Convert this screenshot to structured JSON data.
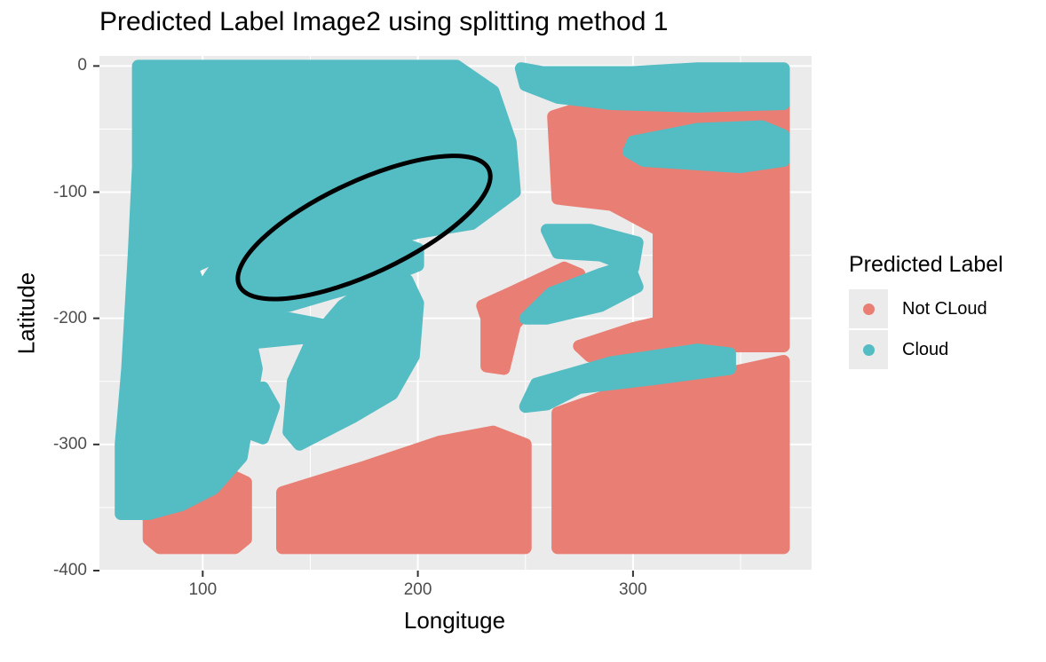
{
  "chart_data": {
    "type": "scatter",
    "title": "Predicted Label Image2 using splitting method 1",
    "xlabel": "Longituge",
    "ylabel": "Latitude",
    "xlim": [
      52,
      383
    ],
    "ylim": [
      -400,
      8
    ],
    "x_ticks": [
      100,
      200,
      300
    ],
    "y_ticks": [
      0,
      -100,
      -200,
      -300,
      -400
    ],
    "x_tick_labels": [
      "100",
      "200",
      "300"
    ],
    "y_tick_labels": [
      "0",
      "-100",
      "-200",
      "-300",
      "-400"
    ],
    "grid": true,
    "legend": {
      "title": "Predicted Label",
      "position": "right",
      "entries": [
        {
          "label": "Not CLoud",
          "color": "#E97F74"
        },
        {
          "label": "Cloud",
          "color": "#54BCC3"
        }
      ]
    },
    "series": [
      {
        "name": "Not CLoud",
        "color": "#E97F74",
        "regions": [
          [
            [
              75,
              -330
            ],
            [
              88,
              -320
            ],
            [
              110,
              -322
            ],
            [
              120,
              -330
            ],
            [
              120,
              -375
            ],
            [
              115,
              -382
            ],
            [
              80,
              -382
            ],
            [
              75,
              -375
            ]
          ],
          [
            [
              137,
              -338
            ],
            [
              175,
              -318
            ],
            [
              210,
              -298
            ],
            [
              235,
              -290
            ],
            [
              250,
              -300
            ],
            [
              250,
              -382
            ],
            [
              137,
              -382
            ]
          ],
          [
            [
              265,
              -275
            ],
            [
              290,
              -260
            ],
            [
              335,
              -247
            ],
            [
              370,
              -234
            ],
            [
              370,
              -382
            ],
            [
              265,
              -382
            ]
          ],
          [
            [
              263,
              -40
            ],
            [
              285,
              -28
            ],
            [
              340,
              -24
            ],
            [
              370,
              -24
            ],
            [
              370,
              -222
            ],
            [
              312,
              -222
            ],
            [
              312,
              -130
            ],
            [
              290,
              -110
            ],
            [
              265,
              -105
            ]
          ],
          [
            [
              230,
              -190
            ],
            [
              243,
              -180
            ],
            [
              268,
              -160
            ],
            [
              275,
              -165
            ],
            [
              255,
              -185
            ],
            [
              245,
              -205
            ],
            [
              240,
              -240
            ],
            [
              232,
              -238
            ],
            [
              232,
              -200
            ]
          ],
          [
            [
              275,
              -222
            ],
            [
              300,
              -208
            ],
            [
              340,
              -192
            ],
            [
              360,
              -185
            ],
            [
              365,
              -200
            ],
            [
              340,
              -215
            ],
            [
              305,
              -225
            ],
            [
              280,
              -230
            ]
          ]
        ]
      },
      {
        "name": "Cloud",
        "color": "#54BCC3",
        "regions": [
          [
            [
              62,
              -355
            ],
            [
              62,
              -300
            ],
            [
              65,
              -240
            ],
            [
              68,
              -150
            ],
            [
              70,
              -80
            ],
            [
              70,
              0
            ],
            [
              218,
              0
            ],
            [
              235,
              -20
            ],
            [
              243,
              -60
            ],
            [
              245,
              -100
            ],
            [
              225,
              -125
            ],
            [
              200,
              -132
            ],
            [
              180,
              -140
            ],
            [
              150,
              -145
            ],
            [
              110,
              -148
            ],
            [
              95,
              -160
            ],
            [
              100,
              -180
            ],
            [
              120,
              -200
            ],
            [
              125,
              -240
            ],
            [
              118,
              -310
            ],
            [
              105,
              -335
            ],
            [
              90,
              -348
            ],
            [
              75,
              -355
            ]
          ],
          [
            [
              100,
              -175
            ],
            [
              110,
              -150
            ],
            [
              130,
              -135
            ],
            [
              170,
              -128
            ],
            [
              188,
              -138
            ],
            [
              200,
              -145
            ],
            [
              200,
              -158
            ],
            [
              185,
              -168
            ],
            [
              160,
              -180
            ],
            [
              140,
              -190
            ],
            [
              120,
              -195
            ],
            [
              105,
              -190
            ]
          ],
          [
            [
              140,
              -290
            ],
            [
              142,
              -250
            ],
            [
              150,
              -220
            ],
            [
              165,
              -190
            ],
            [
              182,
              -170
            ],
            [
              195,
              -170
            ],
            [
              200,
              -188
            ],
            [
              198,
              -230
            ],
            [
              188,
              -260
            ],
            [
              170,
              -278
            ],
            [
              145,
              -300
            ]
          ],
          [
            [
              250,
              -270
            ],
            [
              255,
              -252
            ],
            [
              290,
              -235
            ],
            [
              330,
              -225
            ],
            [
              345,
              -228
            ],
            [
              345,
              -240
            ],
            [
              310,
              -248
            ],
            [
              275,
              -255
            ],
            [
              260,
              -268
            ]
          ],
          [
            [
              250,
              -200
            ],
            [
              262,
              -180
            ],
            [
              285,
              -165
            ],
            [
              298,
              -158
            ],
            [
              302,
              -175
            ],
            [
              285,
              -190
            ],
            [
              260,
              -200
            ]
          ],
          [
            [
              248,
              -2
            ],
            [
              258,
              -5
            ],
            [
              300,
              -5
            ],
            [
              330,
              -2
            ],
            [
              370,
              -2
            ],
            [
              370,
              -30
            ],
            [
              330,
              -32
            ],
            [
              290,
              -30
            ],
            [
              265,
              -25
            ],
            [
              250,
              -15
            ]
          ],
          [
            [
              300,
              -60
            ],
            [
              330,
              -50
            ],
            [
              360,
              -48
            ],
            [
              370,
              -55
            ],
            [
              370,
              -75
            ],
            [
              350,
              -80
            ],
            [
              305,
              -75
            ],
            [
              298,
              -68
            ]
          ],
          [
            [
              102,
              -220
            ],
            [
              110,
              -205
            ],
            [
              140,
              -200
            ],
            [
              155,
              -205
            ],
            [
              150,
              -215
            ],
            [
              120,
              -220
            ]
          ],
          [
            [
              96,
              -315
            ],
            [
              104,
              -295
            ],
            [
              112,
              -288
            ],
            [
              118,
              -300
            ],
            [
              112,
              -320
            ],
            [
              100,
              -325
            ]
          ],
          [
            [
              120,
              -290
            ],
            [
              123,
              -262
            ],
            [
              128,
              -255
            ],
            [
              133,
              -270
            ],
            [
              128,
              -295
            ]
          ],
          [
            [
              260,
              -130
            ],
            [
              280,
              -130
            ],
            [
              302,
              -140
            ],
            [
              300,
              -160
            ],
            [
              285,
              -150
            ],
            [
              265,
              -148
            ]
          ]
        ]
      }
    ],
    "annotation": {
      "shape": "ellipse",
      "center": [
        175,
        -128
      ],
      "semi_axes_px": [
        155,
        52
      ],
      "rotation_deg": -25,
      "color": "#000000"
    }
  }
}
